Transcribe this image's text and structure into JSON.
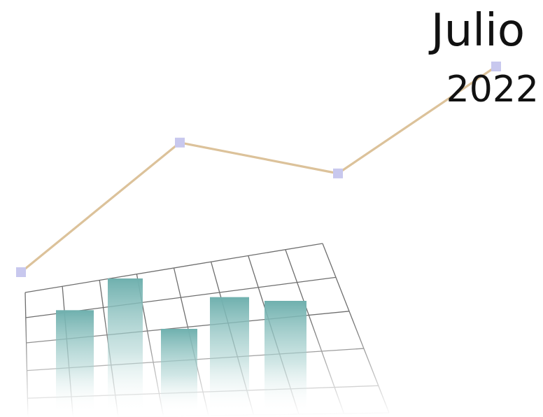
{
  "chart_data": {
    "type": "bar",
    "title": "Julio",
    "subtitle": "2022",
    "xlabel": "",
    "ylabel": "",
    "grid": true,
    "bars": {
      "values": [
        0.55,
        0.72,
        0.45,
        0.62,
        0.6
      ]
    },
    "line": {
      "values": [
        0.0,
        0.63,
        0.48,
        1.0
      ]
    }
  },
  "colors": {
    "line": "#dcc29a",
    "marker": "#c8c8ee",
    "bar_top": "#6fb0ae",
    "grid": "#6e6e6e",
    "text": "#111111"
  }
}
